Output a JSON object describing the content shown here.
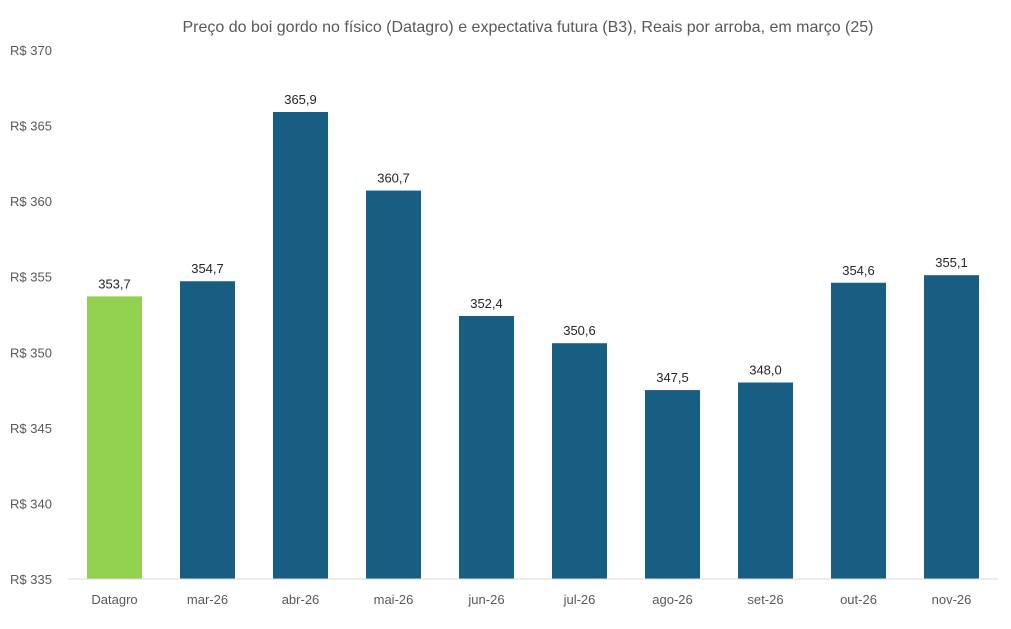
{
  "chart_data": {
    "type": "bar",
    "title": "Preço do boi gordo no físico (Datagro)  e expectativa futura (B3), Reais por arroba, em março (25)",
    "xlabel": "",
    "ylabel": "",
    "y_prefix": "R$ ",
    "ylim": [
      335,
      370
    ],
    "y_ticks": [
      335,
      340,
      345,
      350,
      355,
      360,
      365,
      370
    ],
    "y_tick_labels": [
      "R$ 335",
      "R$ 340",
      "R$ 345",
      "R$ 350",
      "R$ 355",
      "R$ 360",
      "R$ 365",
      "R$ 370"
    ],
    "categories": [
      "Datagro",
      "mar-26",
      "abr-26",
      "mai-26",
      "jun-26",
      "jul-26",
      "ago-26",
      "set-26",
      "out-26",
      "nov-26"
    ],
    "values": [
      353.7,
      354.7,
      365.9,
      360.7,
      352.4,
      350.6,
      347.5,
      348.0,
      354.6,
      355.1
    ],
    "value_labels": [
      "353,7",
      "354,7",
      "365,9",
      "360,7",
      "352,4",
      "350,6",
      "347,5",
      "348,0",
      "354,6",
      "355,1"
    ],
    "bar_colors": [
      "#92d050",
      "#175e82",
      "#175e82",
      "#175e82",
      "#175e82",
      "#175e82",
      "#175e82",
      "#175e82",
      "#175e82",
      "#175e82"
    ],
    "grid": false,
    "legend": "none"
  }
}
